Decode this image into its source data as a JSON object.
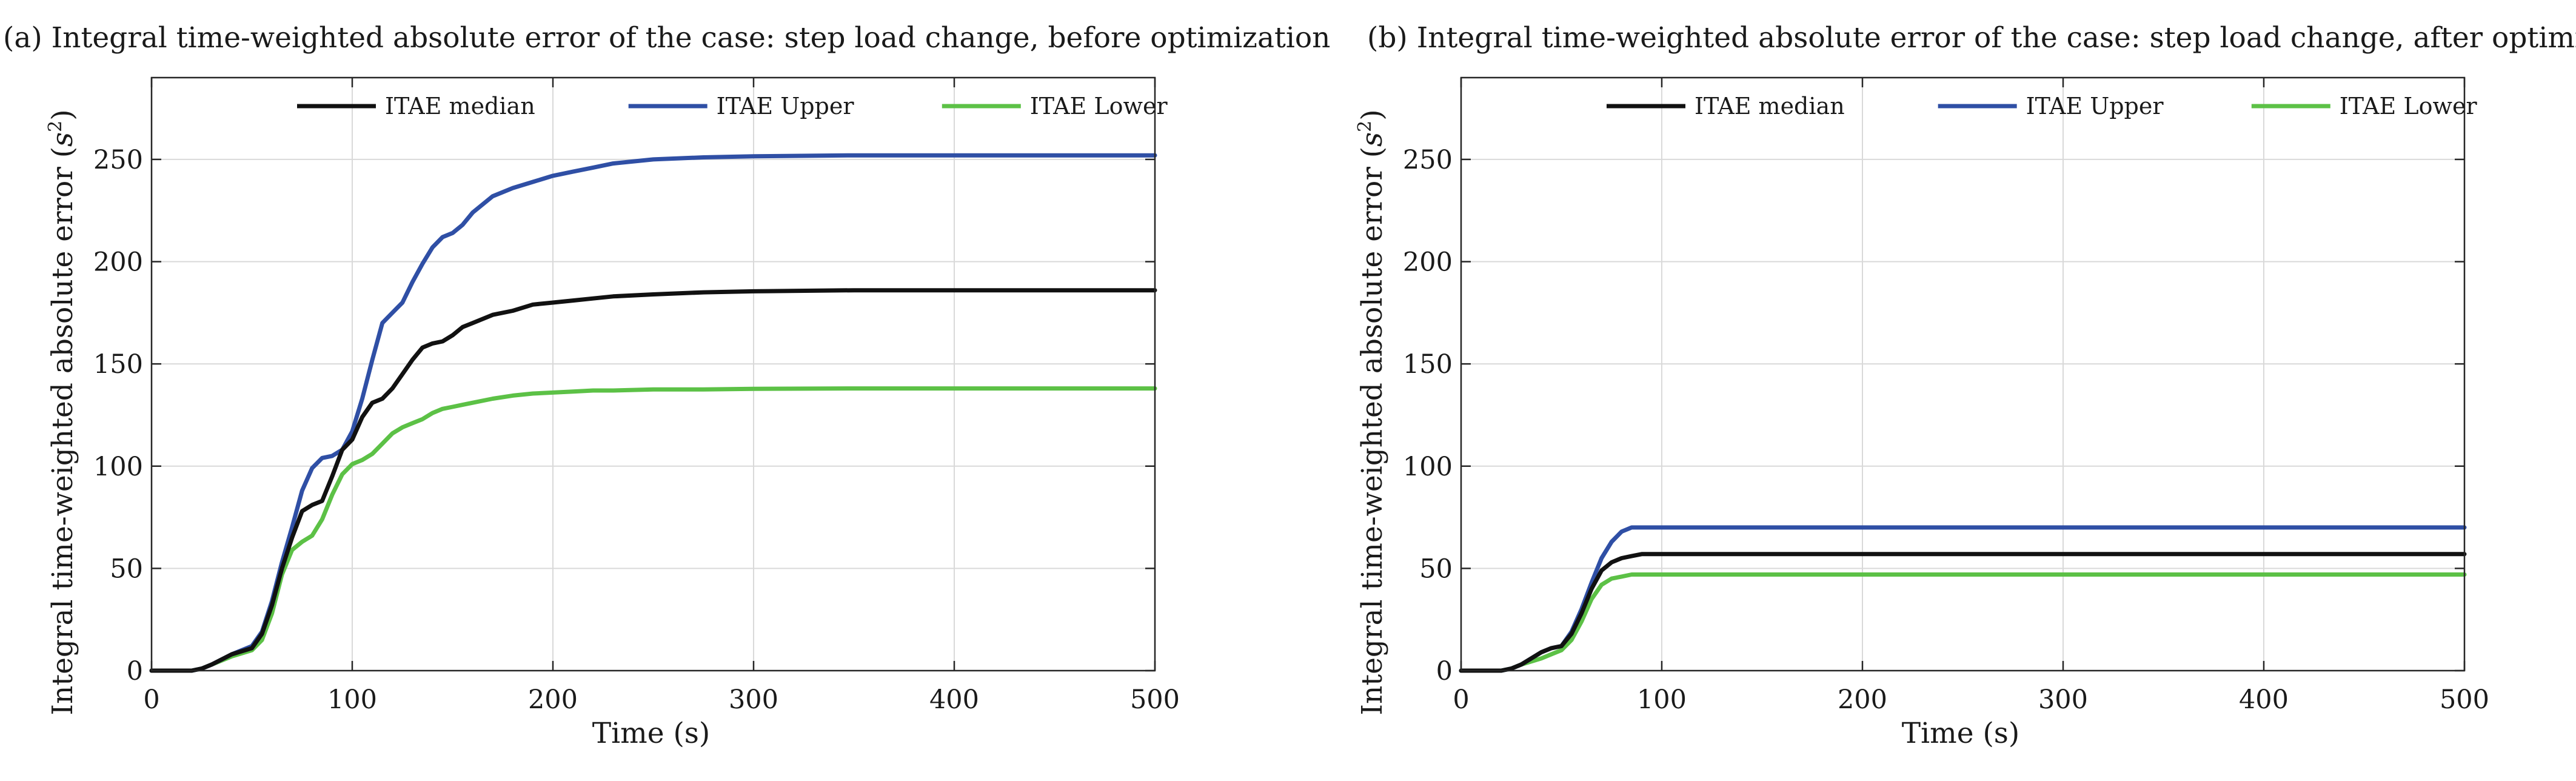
{
  "colors": {
    "median": "#111111",
    "upper": "#2f4fa5",
    "lower": "#5cc146",
    "grid": "#d9d9d9",
    "axis": "#262626"
  },
  "chart_data": [
    {
      "type": "line",
      "title": "(a) Integral time-weighted absolute error of the case: step load change, before optimization",
      "xlabel": "Time (s)",
      "ylabel": "Integral time-weighted absolute error",
      "ylabel_unit": "s",
      "ylabel_unit_exp": "2",
      "xlim": [
        0,
        500
      ],
      "ylim": [
        0,
        290
      ],
      "xticks": [
        0,
        100,
        200,
        300,
        400,
        500
      ],
      "yticks": [
        0,
        50,
        100,
        150,
        200,
        250
      ],
      "grid": true,
      "legend": "top-center",
      "x": [
        0,
        20,
        25,
        30,
        40,
        50,
        55,
        60,
        65,
        70,
        75,
        80,
        85,
        90,
        95,
        100,
        105,
        110,
        115,
        120,
        125,
        130,
        135,
        140,
        145,
        150,
        155,
        160,
        170,
        180,
        190,
        200,
        210,
        220,
        230,
        250,
        275,
        300,
        350,
        400,
        450,
        500
      ],
      "series": [
        {
          "name": "ITAE median",
          "color_key": "median",
          "values": [
            0,
            0,
            1,
            3,
            8,
            11,
            18,
            32,
            50,
            65,
            78,
            81,
            83,
            95,
            108,
            113,
            124,
            131,
            133,
            138,
            145,
            152,
            158,
            160,
            161,
            164,
            168,
            170,
            174,
            176,
            179,
            180,
            181,
            182,
            183,
            184,
            185,
            185.5,
            186,
            186,
            186,
            186
          ]
        },
        {
          "name": "ITAE Upper",
          "color_key": "upper",
          "values": [
            0,
            0,
            1,
            3,
            8,
            12,
            19,
            34,
            53,
            70,
            88,
            99,
            104,
            105,
            108,
            117,
            133,
            152,
            170,
            175,
            180,
            190,
            199,
            207,
            212,
            214,
            218,
            224,
            232,
            236,
            239,
            242,
            244,
            246,
            248,
            250,
            251,
            251.5,
            252,
            252,
            252,
            252
          ]
        },
        {
          "name": "ITAE Lower",
          "color_key": "lower",
          "values": [
            0,
            0,
            1,
            3,
            7,
            10,
            15,
            28,
            47,
            59,
            63,
            66,
            74,
            86,
            96,
            101,
            103,
            106,
            111,
            116,
            119,
            121,
            123,
            126,
            128,
            129,
            130,
            131,
            133,
            134.5,
            135.5,
            136,
            136.5,
            137,
            137,
            137.5,
            137.5,
            137.8,
            138,
            138,
            138,
            138
          ]
        }
      ]
    },
    {
      "type": "line",
      "title": "(b) Integral time-weighted absolute error of the case: step load change, after optimization",
      "xlabel": "Time (s)",
      "ylabel": "Integral time-weighted absolute error",
      "ylabel_unit": "s",
      "ylabel_unit_exp": "2",
      "xlim": [
        0,
        500
      ],
      "ylim": [
        0,
        290
      ],
      "xticks": [
        0,
        100,
        200,
        300,
        400,
        500
      ],
      "yticks": [
        0,
        50,
        100,
        150,
        200,
        250
      ],
      "grid": true,
      "legend": "top-center",
      "x": [
        0,
        20,
        25,
        30,
        40,
        45,
        50,
        55,
        60,
        65,
        70,
        75,
        80,
        85,
        90,
        100,
        110,
        150,
        200,
        300,
        400,
        500
      ],
      "series": [
        {
          "name": "ITAE median",
          "color_key": "median",
          "values": [
            0,
            0,
            1,
            3,
            9,
            11,
            12,
            18,
            28,
            40,
            49,
            53,
            55,
            56,
            57,
            57,
            57,
            57,
            57,
            57,
            57,
            57
          ]
        },
        {
          "name": "ITAE Upper",
          "color_key": "upper",
          "values": [
            0,
            0,
            1,
            3,
            9,
            11,
            12,
            19,
            30,
            43,
            55,
            63,
            68,
            70,
            70,
            70,
            70,
            70,
            70,
            70,
            70,
            70
          ]
        },
        {
          "name": "ITAE Lower",
          "color_key": "lower",
          "values": [
            0,
            0,
            1,
            3,
            6,
            8,
            10,
            15,
            24,
            35,
            42,
            45,
            46,
            47,
            47,
            47,
            47,
            47,
            47,
            47,
            47,
            47
          ]
        }
      ]
    }
  ]
}
